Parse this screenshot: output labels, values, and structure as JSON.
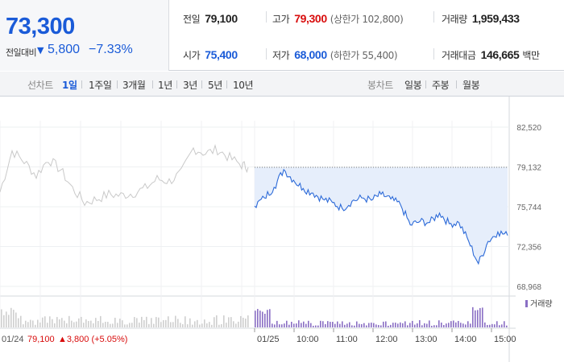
{
  "quote": {
    "price": "73,300",
    "change_label": "전일대비",
    "change_arrow": "▼",
    "change_value": "5,800",
    "change_percent": "−7.33%"
  },
  "stats": {
    "prev_close": {
      "label": "전일",
      "value": "79,100"
    },
    "high": {
      "label": "고가",
      "value": "79,300",
      "sub": "(상한가 102,800)"
    },
    "volume": {
      "label": "거래량",
      "value": "1,959,433"
    },
    "open": {
      "label": "시가",
      "value": "75,400"
    },
    "low": {
      "label": "저가",
      "value": "68,000",
      "sub": "(하한가 55,400)"
    },
    "amount": {
      "label": "거래대금",
      "value": "146,665",
      "unit": "백만"
    }
  },
  "period_bar": {
    "line_label": "선차트",
    "line_options": [
      "1일",
      "1주일",
      "3개월",
      "1년",
      "3년",
      "5년",
      "10년"
    ],
    "active": "1일",
    "candle_label": "봉차트",
    "candle_options": [
      "일봉",
      "주봉",
      "월봉"
    ]
  },
  "colors": {
    "brand_blue": "#1a5bd8",
    "up_red": "#d80c0c",
    "today_line": "#2c6ad8",
    "today_fill": "#e6eefb",
    "prev_line": "#c9c9c9",
    "volume_today": "#8a6fc4",
    "volume_prev": "#cfcfcf"
  },
  "chart_data": {
    "type": "line",
    "y_ticks": [
      "82,520",
      "79,132",
      "75,744",
      "72,356",
      "68,968"
    ],
    "ylim": [
      68968,
      82520
    ],
    "prev_close": 79100,
    "x_labels": [
      "01/25",
      "10:00",
      "11:00",
      "12:00",
      "13:00",
      "14:00",
      "15:00"
    ],
    "prev_day_label": "01/24",
    "prev_day_close": "79,100",
    "prev_day_change": "▲3,800 (+5.05%)",
    "volume_legend": "거래량",
    "prev_session": {
      "x": [
        0,
        15,
        30,
        45,
        60,
        75,
        90,
        105,
        120,
        135,
        150,
        165,
        180,
        195,
        210,
        225,
        240,
        255,
        270,
        285,
        300,
        308
      ],
      "values": [
        77000,
        80500,
        79600,
        78400,
        79800,
        78900,
        77300,
        76100,
        76400,
        76800,
        76700,
        76900,
        77300,
        78100,
        77900,
        78600,
        80700,
        80300,
        80600,
        79900,
        79300,
        79100
      ]
    },
    "today_session": {
      "times": [
        "09:00",
        "09:15",
        "09:30",
        "09:45",
        "10:00",
        "10:15",
        "10:30",
        "10:45",
        "11:00",
        "11:15",
        "11:30",
        "11:45",
        "12:00",
        "12:15",
        "12:30",
        "12:45",
        "13:00",
        "13:15",
        "13:30",
        "13:45",
        "14:00",
        "14:15",
        "14:30",
        "14:45",
        "15:00",
        "15:15",
        "15:30"
      ],
      "values": [
        75800,
        76500,
        77400,
        78900,
        78000,
        77300,
        76900,
        76400,
        76100,
        75600,
        76200,
        76500,
        76300,
        76800,
        76400,
        75900,
        74200,
        74500,
        74400,
        75200,
        74300,
        74400,
        72800,
        70900,
        72800,
        73600,
        73300
      ]
    }
  }
}
